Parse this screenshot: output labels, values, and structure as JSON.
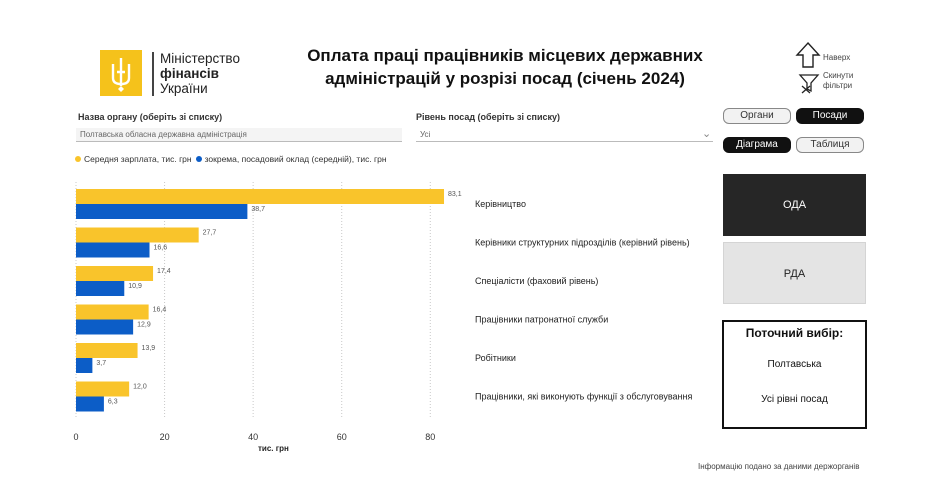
{
  "header": {
    "logo_line1": "Міністерство",
    "logo_line2": "фінансів",
    "logo_line3": "України",
    "title_line1": "Оплата праці працівників місцевих державних",
    "title_line2": "адміністрацій у розрізі посад (січень 2024)"
  },
  "nav": {
    "up_label": "Наверх",
    "reset_label_1": "Скинути",
    "reset_label_2": "фільтри"
  },
  "slicers": {
    "org": {
      "label": "Назва органу (оберіть зі списку)",
      "value": "Полтавська обласна державна адміністрація"
    },
    "level": {
      "label": "Рівень посад (оберіть зі списку)",
      "value": "Усі"
    }
  },
  "legend": {
    "series1": "Середня зарплата, тис. грн",
    "series2": "зокрема, посадовий оклад (середній), тис. грн"
  },
  "colors": {
    "series1": "#F9C42B",
    "series2": "#0C5DC7",
    "dark": "#262626"
  },
  "chart_data": {
    "type": "bar",
    "orientation": "horizontal",
    "categories": [
      "Керівництво",
      "Керівники структурних підрозділів (керівний рівень)",
      "Спеціалісти (фаховий рівень)",
      "Працівники патронатної служби",
      "Робітники",
      "Працівники, які виконують функції з обслуговування"
    ],
    "series": [
      {
        "name": "Середня зарплата, тис. грн",
        "values": [
          83.1,
          27.7,
          17.4,
          16.4,
          13.9,
          12.0
        ],
        "labels": [
          "83,1",
          "27,7",
          "17,4",
          "16,4",
          "13,9",
          "12,0"
        ]
      },
      {
        "name": "зокрема, посадовий оклад (середній), тис. грн",
        "values": [
          38.7,
          16.6,
          10.9,
          12.9,
          3.7,
          6.3
        ],
        "labels": [
          "38,7",
          "16,6",
          "10,9",
          "12,9",
          "3,7",
          "6,3"
        ]
      }
    ],
    "xlim": [
      0,
      84
    ],
    "xticks": [
      0,
      20,
      40,
      60,
      80
    ],
    "xlabel": "тис. грн",
    "grid": "vertical dotted"
  },
  "toggles": {
    "organs": "Органи",
    "positions": "Посади",
    "diagram": "Діаграма",
    "table": "Таблиця"
  },
  "panels": {
    "oda": "ОДА",
    "rda": "РДА"
  },
  "current_selection": {
    "heading": "Поточний вибір:",
    "region": "Полтавська",
    "level": "Усі рівні посад"
  },
  "footer": "Інформацію подано за даними держорганів"
}
